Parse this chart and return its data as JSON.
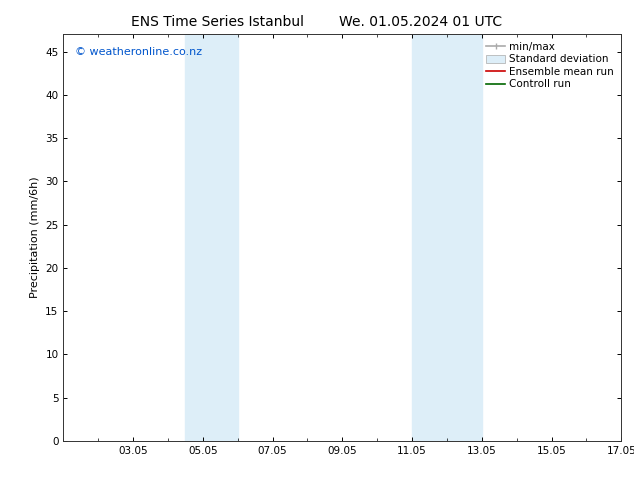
{
  "title_left": "ENS Time Series Istanbul",
  "title_right": "We. 01.05.2024 01 UTC",
  "ylabel": "Precipitation (mm/6h)",
  "ylim": [
    0,
    47
  ],
  "yticks": [
    0,
    5,
    10,
    15,
    20,
    25,
    30,
    35,
    40,
    45
  ],
  "xlim": [
    1.0,
    17.0
  ],
  "xtick_labels": [
    "03.05",
    "05.05",
    "07.05",
    "09.05",
    "11.05",
    "13.05",
    "15.05",
    "17.05"
  ],
  "xtick_positions": [
    3,
    5,
    7,
    9,
    11,
    13,
    15,
    17
  ],
  "shaded_regions": [
    {
      "xmin": 4.5,
      "xmax": 6.0,
      "color": "#ddeef8"
    },
    {
      "xmin": 11.0,
      "xmax": 13.0,
      "color": "#ddeef8"
    }
  ],
  "watermark_text": "© weatheronline.co.nz",
  "watermark_color": "#0055cc",
  "background_color": "#ffffff",
  "plot_bg_color": "#ffffff",
  "title_fontsize": 10,
  "tick_fontsize": 7.5,
  "ylabel_fontsize": 8,
  "watermark_fontsize": 8,
  "legend_fontsize": 7.5
}
